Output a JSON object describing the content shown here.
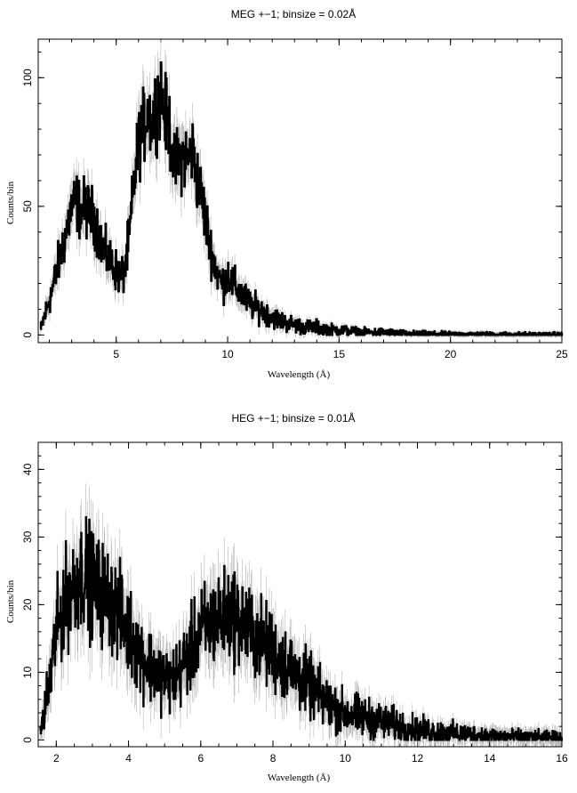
{
  "chart_data": [
    {
      "type": "line",
      "title": "MEG +−1; binsize = 0.02Å",
      "xlabel": "Wavelength (Å)",
      "ylabel": "Counts/bin",
      "xlim": [
        1.5,
        25
      ],
      "ylim": [
        -3,
        115
      ],
      "xticks": [
        5,
        10,
        15,
        20,
        25
      ],
      "yticks": [
        0,
        50,
        100
      ],
      "grid": false,
      "series": [
        {
          "x": [
            1.6,
            1.8,
            2.0,
            2.2,
            2.4,
            2.6,
            2.8,
            3.0,
            3.2,
            3.4,
            3.6,
            3.8,
            4.0,
            4.2,
            4.4,
            4.6,
            4.8,
            5.0,
            5.2,
            5.4,
            5.6,
            5.8,
            6.0,
            6.2,
            6.4,
            6.6,
            6.8,
            7.0,
            7.2,
            7.4,
            7.6,
            7.8,
            8.0,
            8.2,
            8.4,
            8.6,
            8.8,
            9.0,
            9.2,
            9.4,
            9.6,
            9.8,
            10.0,
            10.2,
            10.4,
            10.6,
            10.8,
            11.0,
            11.2,
            11.4,
            11.6,
            11.8,
            12.0,
            12.5,
            13.0,
            13.5,
            14.0,
            14.5,
            15.0,
            16.0,
            17.0,
            18.0,
            20.0,
            22.0,
            24.0,
            25.0
          ],
          "y": [
            2,
            8,
            14,
            20,
            28,
            35,
            42,
            50,
            52,
            48,
            50,
            47,
            46,
            40,
            33,
            30,
            28,
            25,
            22,
            26,
            40,
            60,
            75,
            80,
            88,
            82,
            90,
            95,
            85,
            80,
            65,
            68,
            70,
            68,
            72,
            62,
            55,
            45,
            35,
            28,
            22,
            20,
            24,
            20,
            18,
            16,
            14,
            12,
            11,
            10,
            9,
            8,
            7,
            5,
            4,
            3,
            3,
            2,
            2,
            1,
            1,
            0.5,
            0.3,
            0.2,
            0.1,
            0.1
          ]
        }
      ]
    },
    {
      "type": "line",
      "title": "HEG +−1; binsize = 0.01Å",
      "xlabel": "Wavelength (Å)",
      "ylabel": "Counts/bin",
      "xlim": [
        1.5,
        16
      ],
      "ylim": [
        -1,
        44
      ],
      "xticks": [
        2,
        4,
        6,
        8,
        10,
        12,
        14,
        16
      ],
      "yticks": [
        0,
        10,
        20,
        30,
        40
      ],
      "grid": false,
      "series": [
        {
          "x": [
            1.55,
            1.7,
            1.85,
            2.0,
            2.2,
            2.4,
            2.6,
            2.8,
            3.0,
            3.2,
            3.4,
            3.6,
            3.8,
            4.0,
            4.2,
            4.4,
            4.6,
            4.8,
            5.0,
            5.2,
            5.4,
            5.6,
            5.8,
            6.0,
            6.2,
            6.4,
            6.6,
            6.8,
            7.0,
            7.2,
            7.4,
            7.6,
            7.8,
            8.0,
            8.2,
            8.4,
            8.6,
            8.8,
            9.0,
            9.2,
            9.4,
            9.6,
            9.8,
            10.0,
            10.4,
            10.8,
            11.2,
            11.6,
            12.0,
            12.5,
            13.0,
            13.5,
            14.0,
            14.5,
            15.0,
            16.0
          ],
          "y": [
            1,
            5,
            10,
            16,
            20,
            22,
            24,
            25,
            23,
            22,
            21,
            20,
            18,
            16,
            14,
            12,
            11,
            10,
            9,
            9,
            10,
            12,
            14,
            16,
            17,
            18,
            18,
            19,
            18,
            17,
            16,
            15,
            14,
            13,
            12,
            11,
            10,
            9,
            8,
            7,
            6,
            5,
            4.5,
            4,
            3.5,
            3,
            2.5,
            2,
            1.5,
            1.2,
            1,
            0.8,
            0.6,
            0.5,
            0.4,
            0.3
          ]
        }
      ]
    }
  ]
}
